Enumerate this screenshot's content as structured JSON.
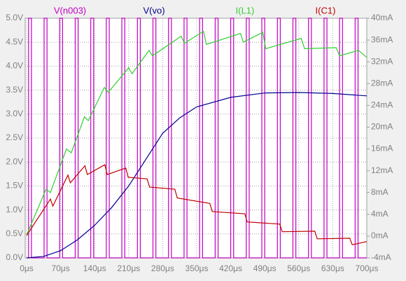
{
  "chart_data": {
    "type": "line",
    "xlim": [
      0,
      700
    ],
    "xticks": [
      {
        "value": 0,
        "label": "0μs"
      },
      {
        "value": 70,
        "label": "70μs"
      },
      {
        "value": 140,
        "label": "140μs"
      },
      {
        "value": 210,
        "label": "210μs"
      },
      {
        "value": 280,
        "label": "280μs"
      },
      {
        "value": 350,
        "label": "350μs"
      },
      {
        "value": 420,
        "label": "420μs"
      },
      {
        "value": 490,
        "label": "490μs"
      },
      {
        "value": 560,
        "label": "560μs"
      },
      {
        "value": 630,
        "label": "630μs"
      },
      {
        "value": 700,
        "label": "700μs"
      }
    ],
    "ylim": [
      0,
      5
    ],
    "yticks": [
      {
        "value": 0,
        "label": "0.0V"
      },
      {
        "value": 0.5,
        "label": "0.5V"
      },
      {
        "value": 1,
        "label": "1.0V"
      },
      {
        "value": 1.5,
        "label": "1.5V"
      },
      {
        "value": 2,
        "label": "2.0V"
      },
      {
        "value": 2.5,
        "label": "2.5V"
      },
      {
        "value": 3,
        "label": "3.0V"
      },
      {
        "value": 3.5,
        "label": "3.5V"
      },
      {
        "value": 4,
        "label": "4.0V"
      },
      {
        "value": 4.5,
        "label": "4.5V"
      },
      {
        "value": 5,
        "label": "5.0V"
      }
    ],
    "y2lim": [
      -4,
      40
    ],
    "y2ticks": [
      {
        "value": -4,
        "label": "-4mA"
      },
      {
        "value": 0,
        "label": "0mA"
      },
      {
        "value": 4,
        "label": "4mA"
      },
      {
        "value": 8,
        "label": "8mA"
      },
      {
        "value": 12,
        "label": "12mA"
      },
      {
        "value": 16,
        "label": "16mA"
      },
      {
        "value": 20,
        "label": "20mA"
      },
      {
        "value": 24,
        "label": "24mA"
      },
      {
        "value": 28,
        "label": "28mA"
      },
      {
        "value": 32,
        "label": "32mA"
      },
      {
        "value": 36,
        "label": "36mA"
      },
      {
        "value": 40,
        "label": "40mA"
      }
    ],
    "grid": true,
    "series": [
      {
        "name": "V(n003)",
        "color": "#c000c0",
        "x": [
          0,
          4,
          4,
          10,
          10,
          36,
          36,
          42,
          42,
          68,
          68,
          74,
          74,
          100,
          100,
          106,
          106,
          132,
          132,
          138,
          138,
          164,
          164,
          170,
          170,
          196,
          196,
          202,
          202,
          228,
          228,
          234,
          234,
          260,
          260,
          266,
          266,
          292,
          292,
          298,
          298,
          324,
          324,
          330,
          330,
          356,
          356,
          362,
          362,
          388,
          388,
          394,
          394,
          420,
          420,
          426,
          426,
          452,
          452,
          458,
          458,
          484,
          484,
          490,
          490,
          516,
          516,
          522,
          522,
          548,
          548,
          554,
          554,
          580,
          580,
          586,
          586,
          612,
          612,
          618,
          618,
          644,
          644,
          650,
          650,
          676,
          676,
          682,
          682,
          700
        ],
        "values": [
          0,
          0,
          5,
          5,
          0,
          0,
          5,
          5,
          0,
          0,
          5,
          5,
          0,
          0,
          5,
          5,
          0,
          0,
          5,
          5,
          0,
          0,
          5,
          5,
          0,
          0,
          5,
          5,
          0,
          0,
          5,
          5,
          0,
          0,
          5,
          5,
          0,
          0,
          5,
          5,
          0,
          0,
          5,
          5,
          0,
          0,
          5,
          5,
          0,
          0,
          5,
          5,
          0,
          0,
          5,
          5,
          0,
          0,
          5,
          5,
          0,
          0,
          5,
          5,
          0,
          0,
          5,
          5,
          0,
          0,
          5,
          5,
          0,
          0,
          5,
          5,
          0,
          0,
          5,
          5,
          0,
          0,
          5,
          5,
          0,
          0,
          5,
          5,
          0,
          0
        ]
      },
      {
        "name": "V(vo)",
        "color": "#000090",
        "x": [
          0,
          35,
          70,
          105,
          140,
          175,
          210,
          245,
          280,
          315,
          350,
          420,
          490,
          560,
          630,
          700
        ],
        "values": [
          0,
          0.03,
          0.15,
          0.38,
          0.68,
          1.05,
          1.5,
          2.05,
          2.6,
          2.92,
          3.15,
          3.35,
          3.44,
          3.45,
          3.43,
          3.38
        ]
      },
      {
        "name": "I(L1)",
        "color": "#30d030",
        "axis": "y2",
        "x": [
          0,
          40,
          49,
          82,
          92,
          119,
          127,
          160,
          168,
          210,
          217,
          252,
          259,
          318,
          325,
          364,
          370,
          440,
          446,
          486,
          492,
          565,
          572,
          637,
          644,
          683,
          700
        ],
        "values": [
          0.2,
          8.6,
          8,
          16,
          15.3,
          21.9,
          21.2,
          27.3,
          26.4,
          30.9,
          29.8,
          34.1,
          33.1,
          36.7,
          35.4,
          37.6,
          35.2,
          37.2,
          35.6,
          37.4,
          34.4,
          36.3,
          34.4,
          34.6,
          33.1,
          34.1,
          32.8
        ]
      },
      {
        "name": "I(C1)",
        "color": "#c00000",
        "axis": "y2",
        "x": [
          0,
          49,
          54,
          85,
          90,
          120,
          125,
          161,
          166,
          204,
          209,
          248,
          253,
          305,
          310,
          377,
          382,
          449,
          454,
          521,
          526,
          593,
          598,
          665,
          670,
          700
        ],
        "values": [
          0.1,
          6.8,
          5.5,
          11.2,
          9.8,
          12.9,
          11.3,
          13.1,
          11.3,
          12.5,
          10.8,
          10.5,
          9,
          8.6,
          7,
          6,
          4.5,
          4.1,
          2.6,
          2.2,
          0.8,
          0.9,
          -0.5,
          -0.4,
          -1.6,
          -1.0
        ]
      }
    ]
  }
}
